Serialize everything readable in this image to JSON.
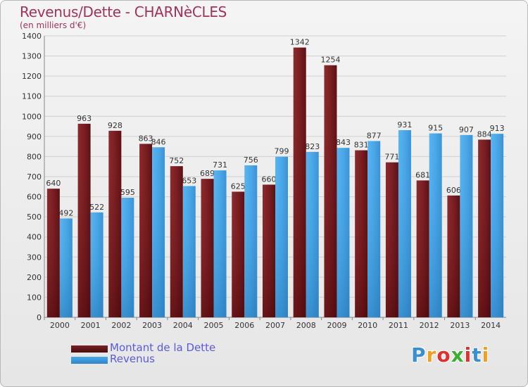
{
  "title": "Revenus/Dette - CHARNèCLES",
  "subtitle": "(en milliers d'€)",
  "logo": {
    "text": "Proxiti",
    "colors": [
      "#3a8fd0",
      "#f0a020",
      "#e03030",
      "#3ab030",
      "#e03030",
      "#3a8fd0",
      "#f0a020"
    ]
  },
  "colors": {
    "debt": "#7a1e22",
    "revenue": "#4aa8e8",
    "title": "#a23355",
    "legend_text": "#5a5ae0"
  },
  "chart_data": {
    "type": "bar",
    "categories": [
      "2000",
      "2001",
      "2002",
      "2003",
      "2004",
      "2005",
      "2006",
      "2007",
      "2008",
      "2009",
      "2010",
      "2011",
      "2012",
      "2013",
      "2014"
    ],
    "series": [
      {
        "name": "Montant de la Dette",
        "values": [
          640,
          963,
          928,
          863,
          752,
          689,
          625,
          660,
          1342,
          1254,
          831,
          771,
          681,
          606,
          884
        ]
      },
      {
        "name": "Revenus",
        "values": [
          492,
          522,
          595,
          846,
          653,
          731,
          756,
          799,
          823,
          843,
          877,
          931,
          915,
          907,
          913
        ]
      }
    ],
    "y_ticks": [
      "0",
      "100",
      "200",
      "300",
      "400",
      "500",
      "600",
      "700",
      "800",
      "900",
      "1000",
      "1100",
      "1200",
      "1300",
      "1400"
    ],
    "ylim": [
      0,
      1400
    ],
    "grid": true,
    "legend_position": "bottom-left"
  }
}
